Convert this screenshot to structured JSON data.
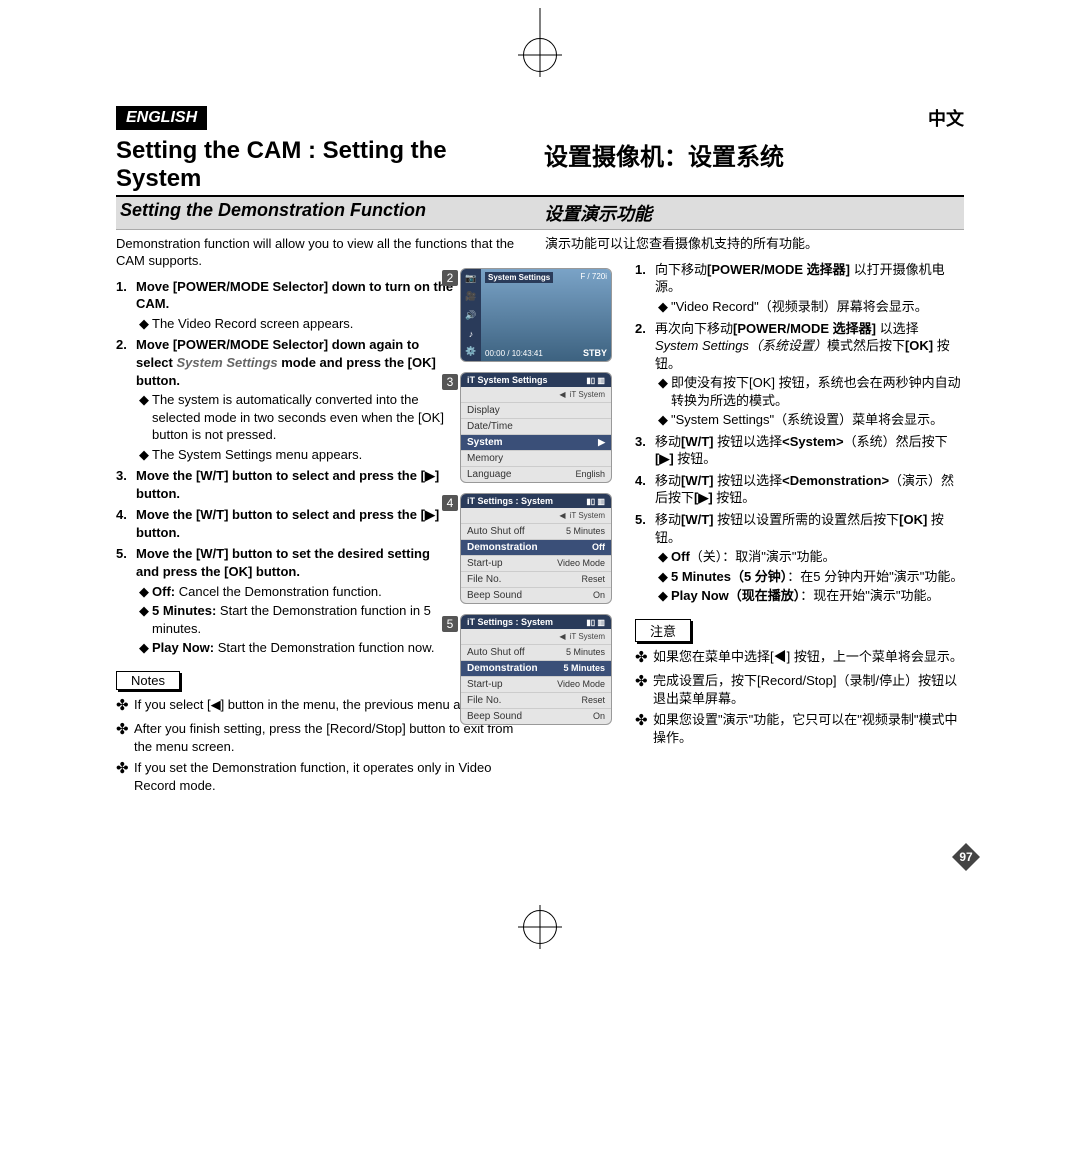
{
  "page_number": "97",
  "labels": {
    "en": "ENGLISH",
    "cn": "中文"
  },
  "headings": {
    "en": "Setting the CAM : Setting the System",
    "cn": "设置摄像机：设置系统"
  },
  "sub": {
    "en": "Setting the Demonstration Function",
    "cn": "设置演示功能"
  },
  "intro": {
    "en": "Demonstration function will allow you to view all the functions that the CAM supports.",
    "cn": "演示功能可以让您查看摄像机支持的所有功能。"
  },
  "notes_label": {
    "en": "Notes",
    "cn": "注意"
  },
  "steps_en": [
    {
      "n": "1.",
      "b": "Move [POWER/MODE Selector] down to turn on the CAM.",
      "subs": [
        {
          "t": "The Video Record screen appears."
        }
      ]
    },
    {
      "n": "2.",
      "b": "Move [POWER/MODE Selector] down again to select ",
      "i": "System Settings",
      "b2": " mode and press the [OK] button.",
      "subs": [
        {
          "t": "The system is automatically converted into the selected mode in two seconds even when the [OK] button is not pressed."
        },
        {
          "t": "The System Settings menu appears."
        }
      ]
    },
    {
      "n": "3.",
      "b": "Move the [W/T] button to select <System> and press the [▶] button.",
      "subs": []
    },
    {
      "n": "4.",
      "b": "Move the [W/T] button to select <Demonstration> and press the [▶] button.",
      "subs": []
    },
    {
      "n": "5.",
      "b": "Move the [W/T] button to set the desired setting and press the [OK] button.",
      "subs": [
        {
          "lead": "Off:",
          "t": " Cancel the Demonstration function."
        },
        {
          "lead": "5 Minutes:",
          "t": " Start the Demonstration function in 5 minutes."
        },
        {
          "lead": "Play Now:",
          "t": " Start the Demonstration function now."
        }
      ]
    }
  ],
  "tips_en": [
    "If you select [◀] button in the menu, the previous menu appears.",
    "After you finish setting, press the [Record/Stop] button to exit from the menu screen.",
    "If you set the Demonstration function, it operates only in Video Record mode."
  ],
  "steps_cn": [
    {
      "n": "1.",
      "html": "向下移动<b>[POWER/MODE 选择器]</b> 以打开摄像机电源。",
      "subs": [
        {
          "t": "\"Video Record\"（视频录制）屏幕将会显示。"
        }
      ]
    },
    {
      "n": "2.",
      "html": "再次向下移动<b>[POWER/MODE 选择器]</b> 以选择 <i>System Settings（系统设置）</i>模式然后按下<b>[OK]</b> 按钮。",
      "subs": [
        {
          "t": "即使没有按下[OK] 按钮，系统也会在两秒钟内自动转换为所选的模式。"
        },
        {
          "t": "\"System Settings\"（系统设置）菜单将会显示。"
        }
      ]
    },
    {
      "n": "3.",
      "html": "移动<b>[W/T]</b> 按钮以选择<b>&lt;System&gt;</b>（系统）然后按下<b>[▶]</b> 按钮。",
      "subs": []
    },
    {
      "n": "4.",
      "html": "移动<b>[W/T]</b> 按钮以选择<b>&lt;Demonstration&gt;</b>（演示）然后按下<b>[▶]</b> 按钮。",
      "subs": []
    },
    {
      "n": "5.",
      "html": "移动<b>[W/T]</b> 按钮以设置所需的设置然后按下<b>[OK]</b> 按钮。",
      "subs": [
        {
          "t": "<b>Off</b>（关）：取消\"演示\"功能。"
        },
        {
          "t": "<b>5 Minutes（5 分钟）</b>：在5 分钟内开始\"演示\"功能。"
        },
        {
          "t": "<b>Play Now（现在播放）</b>：现在开始\"演示\"功能。"
        }
      ]
    }
  ],
  "tips_cn": [
    "如果您在菜单中选择[◀] 按钮，上一个菜单将会显示。",
    "完成设置后，按下[Record/Stop]（录制/停止）按钮以退出菜单屏幕。",
    "如果您设置\"演示\"功能，它只可以在\"视频录制\"模式中操作。"
  ],
  "screens": {
    "s2": {
      "title": "System Settings",
      "f720": "F / 720i",
      "time": "00:00 / 10:43:41",
      "stby": "STBY",
      "icons": [
        "📷",
        "🎥",
        "🔊",
        "♪",
        "⚙️"
      ]
    },
    "s3": {
      "title": "System Settings",
      "tag": "iT System",
      "rows": [
        {
          "l": "Display",
          "r": ""
        },
        {
          "l": "Date/Time",
          "r": ""
        },
        {
          "l": "System",
          "r": "▶",
          "sel": true
        },
        {
          "l": "Memory",
          "r": ""
        },
        {
          "l": "Language",
          "r": "English"
        }
      ]
    },
    "s4": {
      "title": "Settings : System",
      "tag": "iT System",
      "rows": [
        {
          "l": "Auto Shut off",
          "r": "5 Minutes"
        },
        {
          "l": "Demonstration",
          "r": "Off",
          "sel": true
        },
        {
          "l": "Start-up",
          "r": "Video Mode"
        },
        {
          "l": "File No.",
          "r": "Reset"
        },
        {
          "l": "Beep Sound",
          "r": "On"
        }
      ]
    },
    "s5": {
      "title": "Settings : System",
      "tag": "iT System",
      "rows": [
        {
          "l": "Auto Shut off",
          "r": "5 Minutes"
        },
        {
          "l": "Demonstration",
          "r": "5 Minutes",
          "sel": true
        },
        {
          "l": "Start-up",
          "r": "Video Mode"
        },
        {
          "l": "File No.",
          "r": "Reset"
        },
        {
          "l": "Beep Sound",
          "r": "On"
        }
      ]
    }
  }
}
